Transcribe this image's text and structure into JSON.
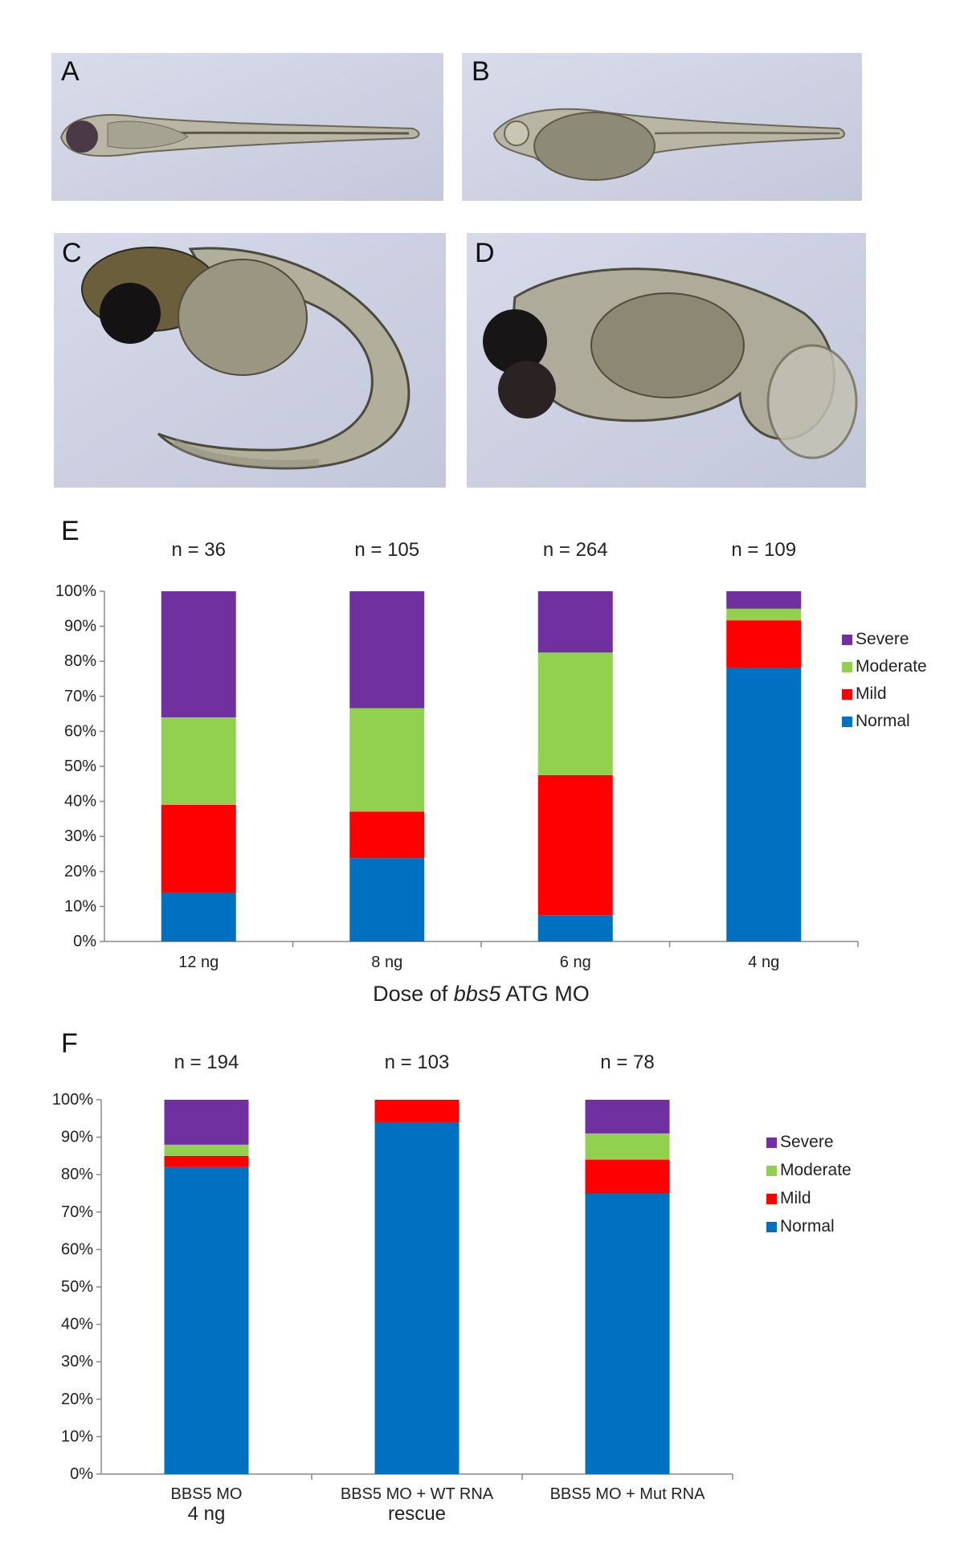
{
  "panels": {
    "a": {
      "letter": "A"
    },
    "b": {
      "letter": "B"
    },
    "c": {
      "letter": "C"
    },
    "d": {
      "letter": "D"
    },
    "e": {
      "letter": "E"
    },
    "f": {
      "letter": "F"
    }
  },
  "colors": {
    "severe": "#7030a0",
    "moderate": "#92d050",
    "mild": "#ff0000",
    "normal": "#0070c0",
    "photo_bg": "#cfd3e4"
  },
  "chart_data": [
    {
      "type": "bar",
      "stacked": true,
      "panel": "E",
      "categories": [
        "12 ng",
        "8 ng",
        "6 ng",
        "4 ng"
      ],
      "n_labels": [
        "n = 36",
        "n = 105",
        "n = 264",
        "n = 109"
      ],
      "xlabel_prefix": "Dose of ",
      "xlabel_italic": "bbs5",
      "xlabel_suffix": " ATG MO",
      "ylim": [
        0,
        100
      ],
      "yticks": [
        "0%",
        "10%",
        "20%",
        "30%",
        "40%",
        "50%",
        "60%",
        "70%",
        "80%",
        "90%",
        "100%"
      ],
      "legend": [
        "Severe",
        "Moderate",
        "Mild",
        "Normal"
      ],
      "legend_position": "right",
      "series": [
        {
          "name": "Normal",
          "values": [
            14,
            23.8,
            7.5,
            78
          ]
        },
        {
          "name": "Mild",
          "values": [
            25,
            13.3,
            40,
            13.7
          ]
        },
        {
          "name": "Moderate",
          "values": [
            25,
            29.5,
            35,
            3.3
          ]
        },
        {
          "name": "Severe",
          "values": [
            36,
            33.4,
            17.5,
            5
          ]
        }
      ]
    },
    {
      "type": "bar",
      "stacked": true,
      "panel": "F",
      "categories": [
        [
          "BBS5 MO",
          "4 ng"
        ],
        [
          "BBS5 MO + WT RNA",
          "rescue"
        ],
        [
          "BBS5 MO + Mut RNA"
        ]
      ],
      "n_labels": [
        "n = 194",
        "n = 103",
        "n = 78"
      ],
      "ylim": [
        0,
        100
      ],
      "yticks": [
        "0%",
        "10%",
        "20%",
        "30%",
        "40%",
        "50%",
        "60%",
        "70%",
        "80%",
        "90%",
        "100%"
      ],
      "legend": [
        "Severe",
        "Moderate",
        "Mild",
        "Normal"
      ],
      "legend_position": "right",
      "series": [
        {
          "name": "Normal",
          "values": [
            82,
            94,
            75
          ]
        },
        {
          "name": "Mild",
          "values": [
            3,
            6,
            9
          ]
        },
        {
          "name": "Moderate",
          "values": [
            3,
            0,
            7
          ]
        },
        {
          "name": "Severe",
          "values": [
            12,
            0,
            9
          ]
        }
      ]
    }
  ]
}
